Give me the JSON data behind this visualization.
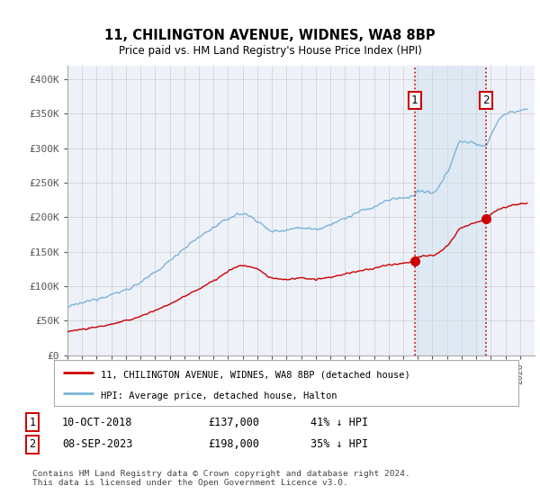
{
  "title": "11, CHILINGTON AVENUE, WIDNES, WA8 8BP",
  "subtitle": "Price paid vs. HM Land Registry's House Price Index (HPI)",
  "ylim": [
    0,
    420000
  ],
  "yticks": [
    0,
    50000,
    100000,
    150000,
    200000,
    250000,
    300000,
    350000,
    400000
  ],
  "ytick_labels": [
    "£0",
    "£50K",
    "£100K",
    "£150K",
    "£200K",
    "£250K",
    "£300K",
    "£350K",
    "£400K"
  ],
  "hpi_color": "#7ab4d8",
  "price_color": "#cc0000",
  "vline_color": "#cc0000",
  "shade_color": "#ddeeff",
  "marker1_year": 2018.78,
  "marker1_price": 137000,
  "marker2_year": 2023.67,
  "marker2_price": 198000,
  "legend_line1": "11, CHILINGTON AVENUE, WIDNES, WA8 8BP (detached house)",
  "legend_line2": "HPI: Average price, detached house, Halton",
  "footer": "Contains HM Land Registry data © Crown copyright and database right 2024.\nThis data is licensed under the Open Government Licence v3.0.",
  "background_color": "#eef2f8",
  "grid_color": "#cccccc"
}
